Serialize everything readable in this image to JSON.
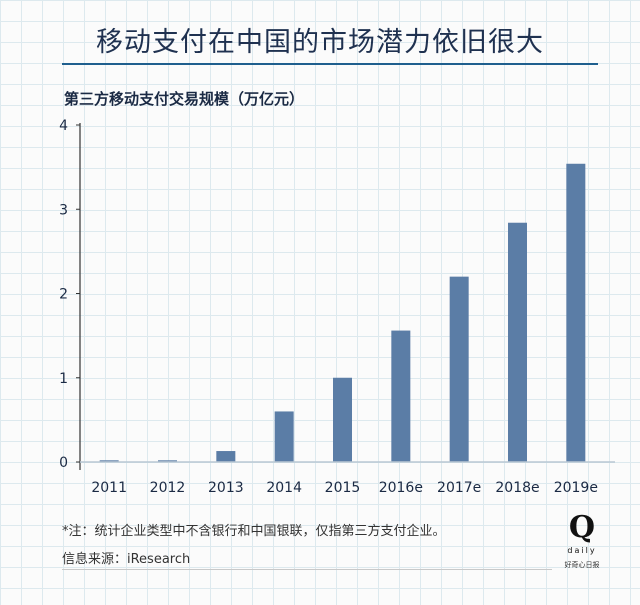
{
  "title": "移动支付在中国的市场潜力依旧很大",
  "subtitle": "第三方移动支付交易规模（万亿元）",
  "footnote": "*注：统计企业类型中不含银行和中国银联，仅指第三方支付企业。",
  "source": "信息来源：iResearch",
  "logo": {
    "mark": "Q",
    "word": "daily",
    "cn": "好奇心日报"
  },
  "colors": {
    "bar": "#5b7da6",
    "axis": "#333333"
  },
  "chart_data": {
    "type": "bar",
    "categories": [
      "2011",
      "2012",
      "2013",
      "2014",
      "2015",
      "2016e",
      "2017e",
      "2018e",
      "2019e"
    ],
    "values": [
      0.02,
      0.02,
      0.13,
      0.6,
      1.0,
      1.56,
      2.2,
      2.84,
      3.54
    ],
    "ylim": [
      0,
      4
    ],
    "yticks": [
      "0",
      "1",
      "2",
      "3",
      "4"
    ],
    "xlabel": "",
    "ylabel": "",
    "grid": true
  }
}
